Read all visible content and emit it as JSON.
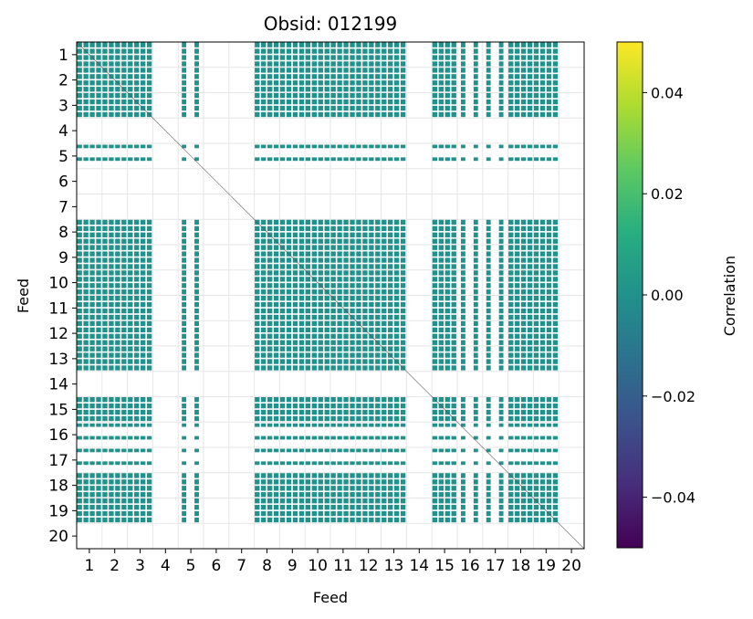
{
  "chart_data": {
    "type": "heatmap",
    "title": "Obsid: 012199",
    "xlabel": "Feed",
    "ylabel": "Feed",
    "x_ticks": [
      "1",
      "2",
      "3",
      "4",
      "5",
      "6",
      "7",
      "8",
      "9",
      "10",
      "11",
      "12",
      "13",
      "14",
      "15",
      "16",
      "17",
      "18",
      "19",
      "20"
    ],
    "y_ticks": [
      "1",
      "2",
      "3",
      "4",
      "5",
      "6",
      "7",
      "8",
      "9",
      "10",
      "11",
      "12",
      "13",
      "14",
      "15",
      "16",
      "17",
      "18",
      "19",
      "20"
    ],
    "active_feeds": [
      1,
      2,
      3,
      5,
      8,
      9,
      10,
      11,
      12,
      13,
      15,
      16,
      17,
      18,
      19
    ],
    "partial_feeds": [
      5,
      16,
      17
    ],
    "masked_feeds": [
      4,
      6,
      7,
      14,
      20
    ],
    "cell_value": 0.0,
    "grid": true,
    "colorbar": {
      "label": "Correlation",
      "colormap": "viridis",
      "range": [
        -0.05,
        0.05
      ],
      "ticks": [
        0.04,
        0.02,
        0.0,
        -0.02,
        -0.04
      ],
      "tick_labels": [
        "0.04",
        "0.02",
        "0.00",
        "−0.02",
        "−0.04"
      ]
    },
    "colors": {
      "cell": "#21918c",
      "grid": "#e6e6e6",
      "diagonal": "#555555"
    }
  }
}
